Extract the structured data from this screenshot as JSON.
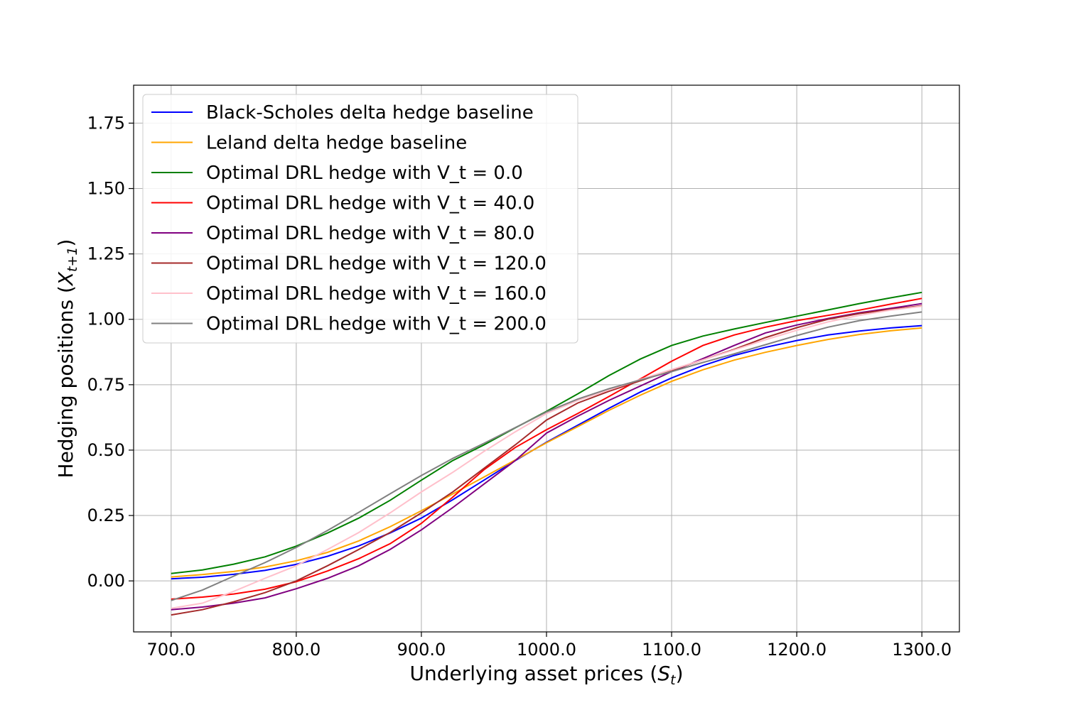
{
  "chart_data": {
    "type": "line",
    "title": "",
    "xlabel": "Underlying asset prices",
    "xlabel_math_symbol": "S",
    "xlabel_math_subscript": "t",
    "ylabel": "Hedging positions",
    "ylabel_math_symbol": "X",
    "ylabel_math_subscript": "t+1",
    "xlim": [
      670,
      1330
    ],
    "ylim": [
      -0.195,
      1.895
    ],
    "xticks": [
      700,
      800,
      900,
      1000,
      1100,
      1200,
      1300
    ],
    "xtick_labels": [
      "700.0",
      "800.0",
      "900.0",
      "1000.0",
      "1100.0",
      "1200.0",
      "1300.0"
    ],
    "yticks": [
      0.0,
      0.25,
      0.5,
      0.75,
      1.0,
      1.25,
      1.5,
      1.75
    ],
    "ytick_labels": [
      "0.00",
      "0.25",
      "0.50",
      "0.75",
      "1.00",
      "1.25",
      "1.50",
      "1.75"
    ],
    "grid": true,
    "legend_position": "upper-left",
    "x": [
      700,
      725,
      750,
      775,
      800,
      825,
      850,
      875,
      900,
      925,
      950,
      975,
      1000,
      1025,
      1050,
      1075,
      1100,
      1125,
      1150,
      1175,
      1200,
      1225,
      1250,
      1275,
      1300
    ],
    "series": [
      {
        "name": "Black-Scholes delta hedge baseline",
        "color": "#0000ff",
        "values": [
          0.008,
          0.014,
          0.025,
          0.04,
          0.063,
          0.094,
          0.134,
          0.183,
          0.24,
          0.31,
          0.385,
          0.46,
          0.53,
          0.595,
          0.66,
          0.722,
          0.776,
          0.823,
          0.862,
          0.893,
          0.919,
          0.94,
          0.955,
          0.967,
          0.976
        ]
      },
      {
        "name": "Leland delta hedge baseline",
        "color": "#ffa500",
        "values": [
          0.015,
          0.024,
          0.036,
          0.053,
          0.077,
          0.109,
          0.153,
          0.207,
          0.268,
          0.332,
          0.397,
          0.462,
          0.528,
          0.59,
          0.652,
          0.71,
          0.763,
          0.807,
          0.844,
          0.874,
          0.9,
          0.923,
          0.942,
          0.956,
          0.967
        ]
      },
      {
        "name": "Optimal DRL hedge with V_t = 0.0",
        "color": "#008000",
        "values": [
          0.028,
          0.042,
          0.064,
          0.092,
          0.133,
          0.183,
          0.24,
          0.308,
          0.385,
          0.46,
          0.52,
          0.585,
          0.648,
          0.715,
          0.785,
          0.848,
          0.9,
          0.936,
          0.963,
          0.988,
          1.012,
          1.036,
          1.06,
          1.082,
          1.103
        ]
      },
      {
        "name": "Optimal DRL hedge with V_t = 40.0",
        "color": "#ff0000",
        "values": [
          -0.07,
          -0.062,
          -0.05,
          -0.032,
          -0.003,
          0.038,
          0.085,
          0.142,
          0.22,
          0.32,
          0.425,
          0.51,
          0.578,
          0.64,
          0.705,
          0.772,
          0.84,
          0.9,
          0.94,
          0.97,
          0.995,
          1.015,
          1.035,
          1.058,
          1.08
        ]
      },
      {
        "name": "Optimal DRL hedge with V_t = 80.0",
        "color": "#800080",
        "values": [
          -0.11,
          -0.1,
          -0.085,
          -0.065,
          -0.03,
          0.01,
          0.058,
          0.12,
          0.195,
          0.28,
          0.37,
          0.46,
          0.565,
          0.63,
          0.69,
          0.745,
          0.8,
          0.85,
          0.9,
          0.948,
          0.978,
          1.003,
          1.025,
          1.042,
          1.06
        ]
      },
      {
        "name": "Optimal DRL hedge with V_t = 120.0",
        "color": "#a52a2a",
        "values": [
          -0.13,
          -0.11,
          -0.08,
          -0.045,
          0.0,
          0.058,
          0.12,
          0.185,
          0.26,
          0.34,
          0.43,
          0.52,
          0.615,
          0.68,
          0.725,
          0.765,
          0.805,
          0.845,
          0.885,
          0.93,
          0.968,
          1.0,
          1.022,
          1.038,
          1.052
        ]
      },
      {
        "name": "Optimal DRL hedge with V_t = 160.0",
        "color": "#ffc0cb",
        "values": [
          -0.105,
          -0.085,
          -0.04,
          0.01,
          0.058,
          0.12,
          0.185,
          0.26,
          0.34,
          0.415,
          0.495,
          0.57,
          0.64,
          0.69,
          0.73,
          0.77,
          0.808,
          0.845,
          0.883,
          0.922,
          0.958,
          0.99,
          1.015,
          1.035,
          1.05
        ]
      },
      {
        "name": "Optimal DRL hedge with V_t = 200.0",
        "color": "#808080",
        "values": [
          -0.075,
          -0.035,
          0.018,
          0.07,
          0.128,
          0.193,
          0.262,
          0.333,
          0.403,
          0.468,
          0.526,
          0.586,
          0.646,
          0.695,
          0.735,
          0.768,
          0.8,
          0.835,
          0.868,
          0.903,
          0.938,
          0.97,
          0.995,
          1.012,
          1.028
        ]
      }
    ]
  }
}
